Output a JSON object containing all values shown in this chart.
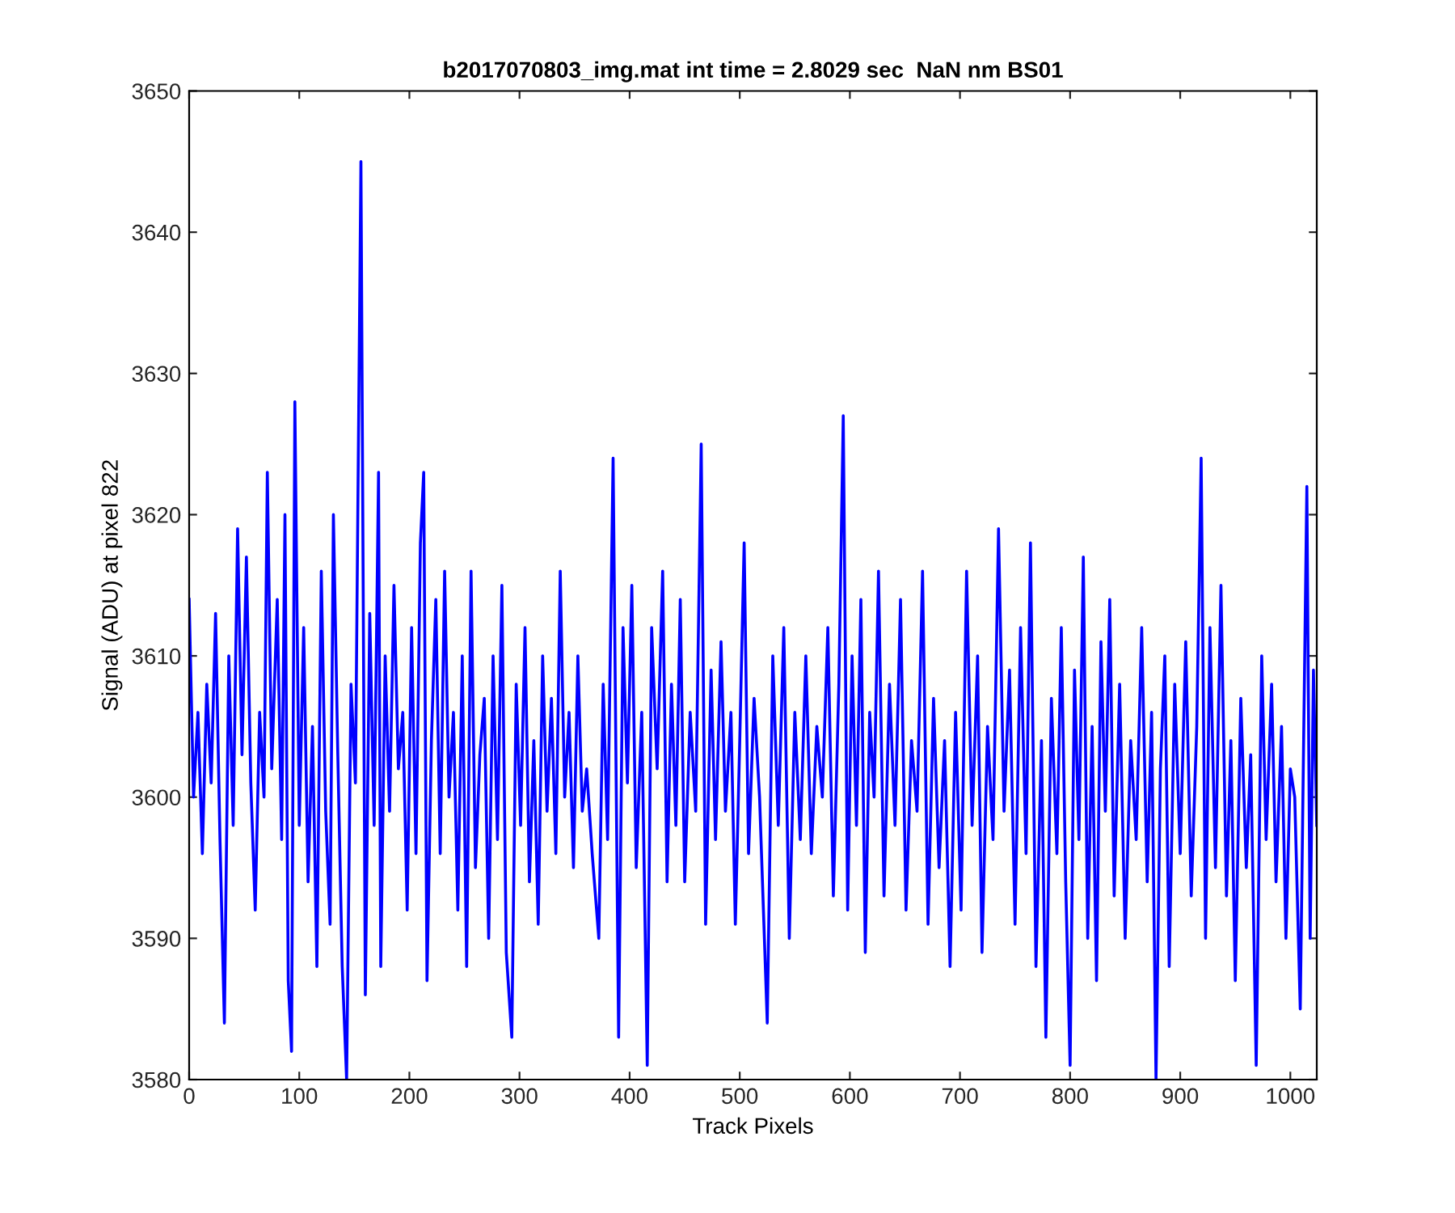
{
  "chart_data": {
    "type": "line",
    "title": "b2017070803_img.mat int time = 2.8029 sec  NaN nm BS01",
    "xlabel": "Track Pixels",
    "ylabel": "Signal (ADU) at pixel 822",
    "xlim": [
      0,
      1024
    ],
    "ylim": [
      3580,
      3650
    ],
    "xticks": [
      0,
      100,
      200,
      300,
      400,
      500,
      600,
      700,
      800,
      900,
      1000
    ],
    "yticks": [
      3580,
      3590,
      3600,
      3610,
      3620,
      3630,
      3640,
      3650
    ],
    "grid": false,
    "legend": false,
    "marker": "none",
    "line_style": "solid",
    "series": [
      {
        "color": "#0000ff",
        "x": [
          0,
          4,
          8,
          12,
          16,
          20,
          24,
          28,
          32,
          36,
          40,
          44,
          48,
          52,
          56,
          60,
          64,
          68,
          71,
          75,
          80,
          84,
          87,
          90,
          93,
          96,
          100,
          104,
          108,
          112,
          116,
          120,
          124,
          128,
          131,
          135,
          139,
          143,
          147,
          151,
          156,
          160,
          164,
          168,
          172,
          174,
          178,
          182,
          186,
          190,
          194,
          198,
          202,
          206,
          210,
          213,
          216,
          220,
          224,
          228,
          232,
          236,
          240,
          244,
          248,
          252,
          256,
          260,
          264,
          268,
          272,
          276,
          280,
          284,
          288,
          293,
          297,
          301,
          305,
          309,
          313,
          317,
          321,
          325,
          329,
          333,
          337,
          341,
          345,
          349,
          353,
          357,
          361,
          366,
          372,
          376,
          380,
          385,
          390,
          394,
          398,
          402,
          406,
          411,
          416,
          420,
          425,
          430,
          434,
          438,
          442,
          446,
          450,
          455,
          460,
          465,
          469,
          474,
          478,
          483,
          487,
          492,
          496,
          500,
          504,
          508,
          513,
          518,
          525,
          530,
          535,
          540,
          545,
          550,
          555,
          560,
          565,
          570,
          575,
          580,
          585,
          590,
          594,
          598,
          602,
          606,
          610,
          614,
          618,
          622,
          626,
          631,
          636,
          641,
          646,
          651,
          656,
          661,
          666,
          671,
          676,
          681,
          686,
          691,
          696,
          701,
          706,
          711,
          716,
          720,
          725,
          730,
          735,
          740,
          745,
          750,
          755,
          760,
          764,
          769,
          774,
          778,
          783,
          788,
          792,
          796,
          800,
          804,
          808,
          812,
          816,
          820,
          824,
          828,
          832,
          836,
          840,
          845,
          850,
          855,
          860,
          865,
          870,
          874,
          878,
          882,
          886,
          890,
          895,
          900,
          905,
          910,
          915,
          919,
          923,
          927,
          932,
          937,
          942,
          946,
          950,
          955,
          960,
          964,
          969,
          974,
          978,
          983,
          987,
          992,
          996,
          1000,
          1004,
          1009,
          1015,
          1018,
          1021,
          1024
        ],
        "values": [
          3614,
          3600,
          3606,
          3596,
          3608,
          3601,
          3613,
          3597,
          3584,
          3610,
          3598,
          3619,
          3603,
          3617,
          3601,
          3592,
          3606,
          3600,
          3623,
          3602,
          3614,
          3597,
          3620,
          3587,
          3582,
          3628,
          3598,
          3612,
          3594,
          3605,
          3588,
          3616,
          3599,
          3591,
          3620,
          3603,
          3588,
          3580,
          3608,
          3601,
          3645,
          3586,
          3613,
          3598,
          3623,
          3588,
          3610,
          3599,
          3615,
          3602,
          3606,
          3592,
          3612,
          3596,
          3618,
          3623,
          3587,
          3604,
          3614,
          3596,
          3616,
          3600,
          3606,
          3592,
          3610,
          3588,
          3616,
          3595,
          3603,
          3607,
          3590,
          3610,
          3597,
          3615,
          3589,
          3583,
          3608,
          3598,
          3612,
          3594,
          3604,
          3591,
          3610,
          3599,
          3607,
          3596,
          3616,
          3600,
          3606,
          3595,
          3610,
          3599,
          3602,
          3596,
          3590,
          3608,
          3597,
          3624,
          3583,
          3612,
          3601,
          3615,
          3595,
          3606,
          3581,
          3612,
          3602,
          3616,
          3594,
          3608,
          3598,
          3614,
          3594,
          3606,
          3599,
          3625,
          3591,
          3609,
          3597,
          3611,
          3599,
          3606,
          3591,
          3604,
          3618,
          3596,
          3607,
          3600,
          3584,
          3610,
          3598,
          3612,
          3590,
          3606,
          3597,
          3610,
          3596,
          3605,
          3600,
          3612,
          3593,
          3608,
          3627,
          3592,
          3610,
          3598,
          3614,
          3589,
          3606,
          3600,
          3616,
          3593,
          3608,
          3598,
          3614,
          3592,
          3604,
          3599,
          3616,
          3591,
          3607,
          3595,
          3604,
          3588,
          3606,
          3592,
          3616,
          3598,
          3610,
          3589,
          3605,
          3597,
          3619,
          3599,
          3609,
          3591,
          3612,
          3596,
          3618,
          3588,
          3604,
          3583,
          3607,
          3596,
          3612,
          3594,
          3581,
          3609,
          3597,
          3617,
          3590,
          3605,
          3587,
          3611,
          3599,
          3614,
          3593,
          3608,
          3590,
          3604,
          3597,
          3612,
          3594,
          3606,
          3580,
          3602,
          3610,
          3588,
          3608,
          3596,
          3611,
          3593,
          3605,
          3624,
          3590,
          3612,
          3595,
          3615,
          3593,
          3604,
          3587,
          3607,
          3595,
          3603,
          3581,
          3610,
          3597,
          3608,
          3594,
          3605,
          3590,
          3602,
          3600,
          3585,
          3622,
          3590,
          3609,
          3598
        ]
      }
    ]
  }
}
